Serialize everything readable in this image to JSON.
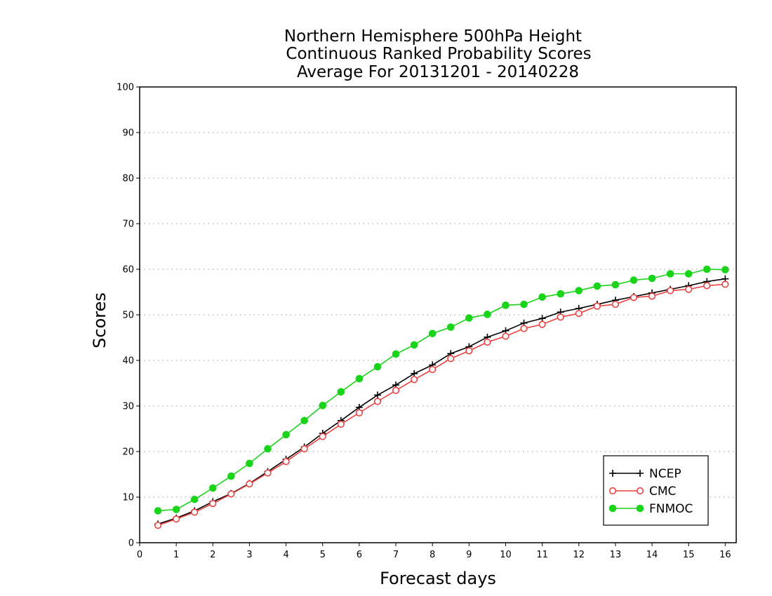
{
  "chart_data": {
    "type": "line",
    "title": [
      "Northern Hemisphere 500hPa Height",
      "Continuous Ranked Probability Scores",
      "Average For 20131201 - 20140228"
    ],
    "xlabel": "Forecast days",
    "ylabel": "Scores",
    "xlim": [
      0,
      16.3
    ],
    "ylim": [
      0,
      100
    ],
    "xticks": [
      "0",
      "1",
      "2",
      "3",
      "4",
      "5",
      "6",
      "7",
      "8",
      "9",
      "10",
      "11",
      "12",
      "13",
      "14",
      "15",
      "16"
    ],
    "yticks": [
      "0",
      "10",
      "20",
      "30",
      "40",
      "50",
      "60",
      "70",
      "80",
      "90",
      "100"
    ],
    "grid": "horizontal dotted",
    "legend_position": "bottom-right",
    "x": [
      0.5,
      1,
      1.5,
      2,
      2.5,
      3,
      3.5,
      4,
      4.5,
      5,
      5.5,
      6,
      6.5,
      7,
      7.5,
      8,
      8.5,
      9,
      9.5,
      10,
      10.5,
      11,
      11.5,
      12,
      12.5,
      13,
      13.5,
      14,
      14.5,
      15,
      15.5,
      16
    ],
    "series": [
      {
        "name": "NCEP",
        "color": "#000000",
        "marker": "plus",
        "values": [
          4.1,
          5.4,
          7.0,
          9.0,
          10.8,
          13.0,
          15.6,
          18.3,
          21.0,
          24.0,
          26.8,
          29.7,
          32.4,
          34.6,
          37.1,
          39.0,
          41.5,
          43.0,
          45.1,
          46.5,
          48.2,
          49.2,
          50.6,
          51.4,
          52.3,
          53.2,
          54.0,
          54.8,
          55.6,
          56.4,
          57.3,
          57.9
        ]
      },
      {
        "name": "CMC",
        "color": "#e8423f",
        "marker": "open-circle",
        "values": [
          3.8,
          5.2,
          6.7,
          8.6,
          10.7,
          12.9,
          15.3,
          17.8,
          20.6,
          23.3,
          26.0,
          28.5,
          31.0,
          33.4,
          35.8,
          38.0,
          40.4,
          42.1,
          44.0,
          45.3,
          47.0,
          47.9,
          49.5,
          50.3,
          51.9,
          52.3,
          53.8,
          54.1,
          55.3,
          55.6,
          56.4,
          56.7
        ]
      },
      {
        "name": "FNMOC",
        "color": "#19d419",
        "marker": "filled-circle",
        "values": [
          7.0,
          7.3,
          9.5,
          12.0,
          14.6,
          17.4,
          20.6,
          23.7,
          26.8,
          30.1,
          33.1,
          36.0,
          38.6,
          41.4,
          43.4,
          45.9,
          47.3,
          49.3,
          50.1,
          52.1,
          52.3,
          53.9,
          54.6,
          55.3,
          56.3,
          56.6,
          57.6,
          58.0,
          59.0,
          59.0,
          60.0,
          59.9
        ]
      }
    ]
  }
}
